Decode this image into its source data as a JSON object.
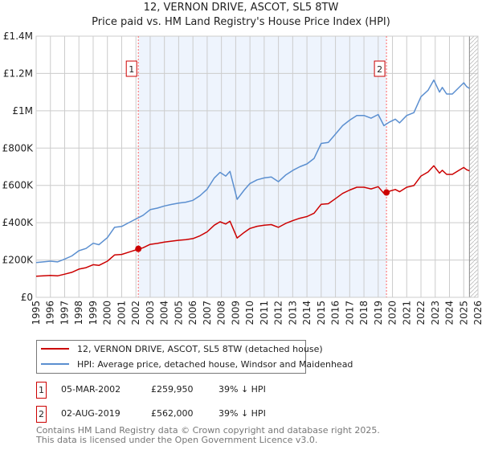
{
  "title_line1": "12, VERNON DRIVE, ASCOT, SL5 8TW",
  "title_line2": "Price paid vs. HM Land Registry's House Price Index (HPI)",
  "colors": {
    "property": "#cc0000",
    "hpi": "#5b8fd0",
    "shade": "#eef4fd",
    "marker_line": "#ff6666"
  },
  "chart_data": {
    "type": "line",
    "title": "Price paid vs. HM Land Registry's House Price Index (HPI)",
    "xlim": [
      1995,
      2026
    ],
    "ylim": [
      0,
      1400000
    ],
    "x_ticks": [
      "1995",
      "1996",
      "1997",
      "1998",
      "1999",
      "2000",
      "2001",
      "2002",
      "2003",
      "2004",
      "2005",
      "2006",
      "2007",
      "2008",
      "2009",
      "2010",
      "2011",
      "2012",
      "2013",
      "2014",
      "2015",
      "2016",
      "2017",
      "2018",
      "2019",
      "2020",
      "2021",
      "2022",
      "2023",
      "2024",
      "2025",
      "2026"
    ],
    "y_ticks": [
      {
        "v": 0,
        "label": "£0"
      },
      {
        "v": 200000,
        "label": "£200K"
      },
      {
        "v": 400000,
        "label": "£400K"
      },
      {
        "v": 600000,
        "label": "£600K"
      },
      {
        "v": 800000,
        "label": "£800K"
      },
      {
        "v": 1000000,
        "label": "£1M"
      },
      {
        "v": 1200000,
        "label": "£1.2M"
      },
      {
        "v": 1400000,
        "label": "£1.4M"
      }
    ],
    "grid": true,
    "x": [
      1995.0,
      1995.5,
      1996.0,
      1996.5,
      1997.0,
      1997.5,
      1998.0,
      1998.5,
      1999.0,
      1999.4,
      2000.0,
      2000.5,
      2001.0,
      2001.5,
      2002.0,
      2002.5,
      2003.0,
      2003.5,
      2004.0,
      2004.5,
      2005.0,
      2005.5,
      2006.0,
      2006.5,
      2007.0,
      2007.5,
      2007.9,
      2008.3,
      2008.6,
      2009.1,
      2009.6,
      2010.0,
      2010.5,
      2011.0,
      2011.5,
      2012.0,
      2012.5,
      2013.0,
      2013.5,
      2014.0,
      2014.5,
      2015.0,
      2015.5,
      2016.0,
      2016.5,
      2017.0,
      2017.5,
      2018.0,
      2018.5,
      2019.0,
      2019.4,
      2019.8,
      2020.2,
      2020.5,
      2021.0,
      2021.5,
      2022.0,
      2022.5,
      2022.9,
      2023.3,
      2023.5,
      2023.8,
      2024.2,
      2024.6,
      2025.0,
      2025.2,
      2025.4
    ],
    "series": [
      {
        "name": "12, VERNON DRIVE, ASCOT, SL5 8TW (detached house)",
        "color": "#cc0000",
        "values": [
          113000,
          115000,
          117000,
          115000,
          124000,
          134000,
          151000,
          159000,
          175000,
          171000,
          194000,
          227000,
          230000,
          242000,
          254000,
          266000,
          284000,
          289000,
          296000,
          301000,
          306000,
          309000,
          315000,
          330000,
          351000,
          387000,
          405000,
          393000,
          408000,
          318000,
          348000,
          369000,
          381000,
          387000,
          390000,
          375000,
          396000,
          411000,
          424000,
          433000,
          451000,
          499000,
          502000,
          529000,
          557000,
          575000,
          590000,
          590000,
          581000,
          593000,
          557000,
          569000,
          578000,
          566000,
          590000,
          599000,
          650000,
          672000,
          705000,
          666000,
          681000,
          659000,
          659000,
          678000,
          696000,
          684000,
          678000
        ]
      },
      {
        "name": "HPI: Average price, detached house, Windsor and Maidenhead",
        "color": "#5b8fd0",
        "values": [
          186000,
          190000,
          194000,
          190000,
          205000,
          222000,
          250000,
          262000,
          290000,
          282000,
          320000,
          375000,
          380000,
          400000,
          420000,
          440000,
          470000,
          478000,
          490000,
          498000,
          505000,
          510000,
          520000,
          545000,
          580000,
          640000,
          670000,
          650000,
          675000,
          525000,
          575000,
          610000,
          630000,
          640000,
          645000,
          620000,
          655000,
          680000,
          700000,
          715000,
          745000,
          825000,
          830000,
          875000,
          920000,
          950000,
          975000,
          975000,
          960000,
          980000,
          920000,
          940000,
          955000,
          935000,
          975000,
          990000,
          1075000,
          1110000,
          1165000,
          1100000,
          1125000,
          1090000,
          1090000,
          1120000,
          1150000,
          1130000,
          1120000
        ]
      }
    ],
    "sales": [
      {
        "label": "1",
        "x": 2002.17,
        "y": 259950
      },
      {
        "label": "2",
        "x": 2019.58,
        "y": 562000
      }
    ],
    "forecast_start": 2025.4,
    "legend_position": "bottom"
  },
  "legend": {
    "property": "12, VERNON DRIVE, ASCOT, SL5 8TW (detached house)",
    "hpi": "HPI: Average price, detached house, Windsor and Maidenhead"
  },
  "transactions": [
    {
      "num": "1",
      "date": "05-MAR-2002",
      "price": "£259,950",
      "delta": "39% ↓ HPI"
    },
    {
      "num": "2",
      "date": "02-AUG-2019",
      "price": "£562,000",
      "delta": "39% ↓ HPI"
    }
  ],
  "footer_line1": "Contains HM Land Registry data © Crown copyright and database right 2025.",
  "footer_line2": "This data is licensed under the Open Government Licence v3.0."
}
